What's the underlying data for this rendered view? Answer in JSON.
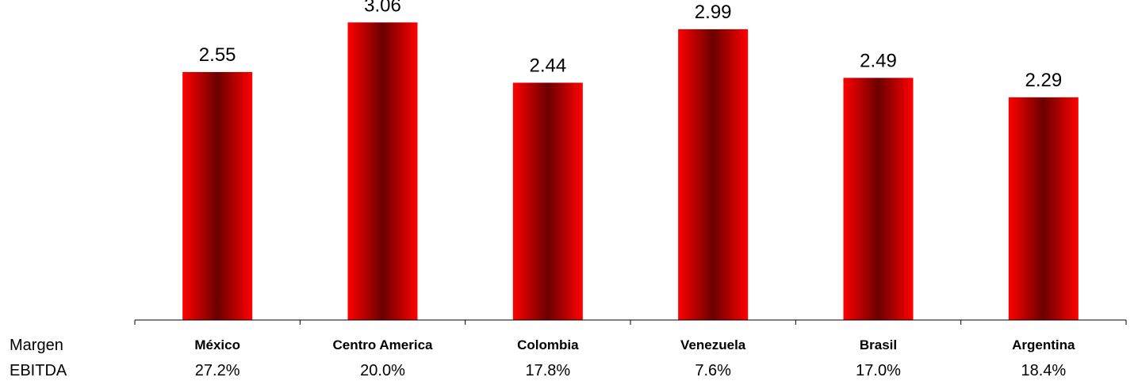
{
  "chart_data": {
    "type": "bar",
    "categories": [
      "México",
      "Centro America",
      "Colombia",
      "Venezuela",
      "Brasil",
      "Argentina"
    ],
    "values": [
      2.55,
      3.06,
      2.44,
      2.99,
      2.49,
      2.29
    ],
    "data_labels": [
      "2.55",
      "3.06",
      "2.44",
      "2.99",
      "2.49",
      "2.29"
    ],
    "ylim": [
      0,
      3.25
    ],
    "grid": false,
    "bar_color": "#ff0000",
    "bar_center_color": "#6b0000"
  },
  "ebitda_row": {
    "label_line1": "Margen",
    "label_line2": "EBITDA",
    "values": [
      "27.2%",
      "20.0%",
      "17.8%",
      "7.6%",
      "17.0%",
      "18.4%"
    ]
  }
}
